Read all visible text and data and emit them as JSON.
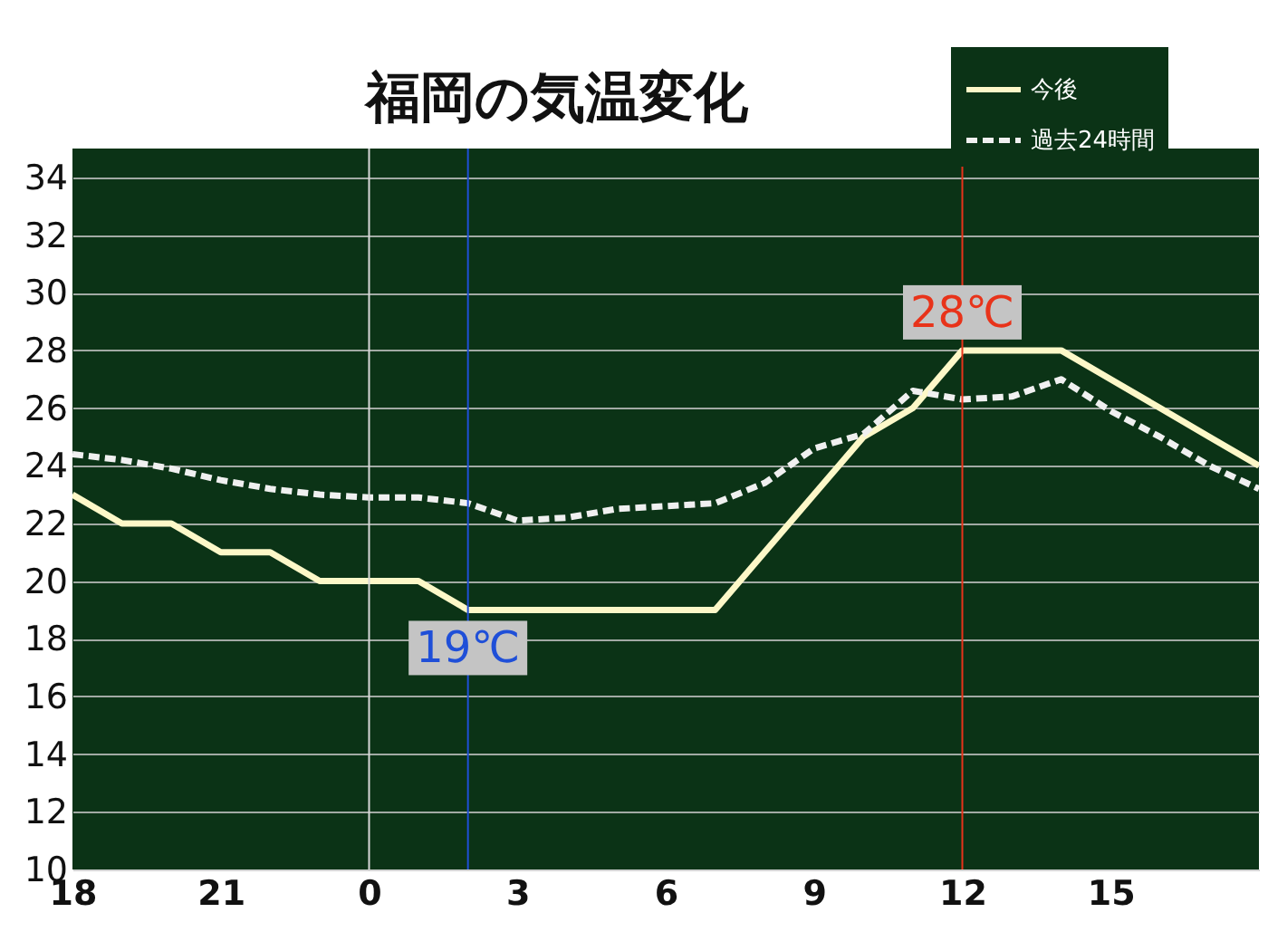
{
  "chart_data": {
    "type": "line",
    "title": "福岡の気温変化",
    "x": [
      "--01-01T18:00",
      "--01-01T19:00",
      "--01-01T20:00",
      "--01-01T21:00",
      "--01-01T22:00",
      "--01-01T23:00",
      "--01-02T00:00",
      "--01-02T01:00",
      "--01-02T02:00",
      "--01-02T03:00",
      "--01-02T04:00",
      "--01-02T05:00",
      "--01-02T06:00",
      "--01-02T07:00",
      "--01-02T08:00",
      "--01-02T09:00",
      "--01-02T10:00",
      "--01-02T11:00",
      "--01-02T12:00",
      "--01-02T13:00",
      "--01-02T14:00",
      "--01-02T15:00",
      "--01-02T16:00",
      "--01-02T17:00",
      "--01-02T18:00"
    ],
    "series": [
      {
        "name": "今後",
        "color": "#fdf8c8",
        "line_style": "solid",
        "values": [
          23,
          22,
          22,
          21,
          21,
          20,
          20,
          20,
          19,
          19,
          19,
          19,
          19,
          19,
          21,
          23,
          25,
          26,
          28,
          28,
          28,
          27,
          26,
          25,
          24
        ]
      },
      {
        "name": "過去24時間",
        "color": "#f0f0f0",
        "line_style": "dashed",
        "values": [
          24.4,
          24.2,
          23.9,
          23.5,
          23.2,
          23,
          22.9,
          22.9,
          22.7,
          22.1,
          22.2,
          22.5,
          22.6,
          22.7,
          23.4,
          24.6,
          25.1,
          26.6,
          26.3,
          26.4,
          27,
          25.9,
          25,
          24,
          23.2
        ]
      }
    ],
    "xlim": [
      "--01-01T18:00",
      "--01-02T18:00"
    ],
    "xticks": [
      {
        "value": "--01-01T18:00",
        "label": "18"
      },
      {
        "value": "--01-01T21:00",
        "label": "21"
      },
      {
        "value": "--01-02T00:00",
        "label": "0"
      },
      {
        "value": "--01-02T03:00",
        "label": "3"
      },
      {
        "value": "--01-02T06:00",
        "label": "6"
      },
      {
        "value": "--01-02T09:00",
        "label": "9"
      },
      {
        "value": "--01-02T12:00",
        "label": "12"
      },
      {
        "value": "--01-02T15:00",
        "label": "15"
      }
    ],
    "ylim": [
      10,
      35
    ],
    "yticks": [
      10,
      12,
      14,
      16,
      18,
      20,
      22,
      24,
      26,
      28,
      30,
      32,
      34
    ],
    "ref_lines": [
      {
        "axis": "x",
        "value": "--01-02T00:00",
        "color": "#d8d8d8"
      },
      {
        "axis": "x",
        "value": "--01-02T02:00",
        "label": "19℃",
        "color": "#1f4fd8"
      },
      {
        "axis": "x",
        "value": "--01-02T12:00",
        "label": "28℃",
        "color": "#e8331a"
      }
    ],
    "grid": "y",
    "legend": "top right"
  }
}
